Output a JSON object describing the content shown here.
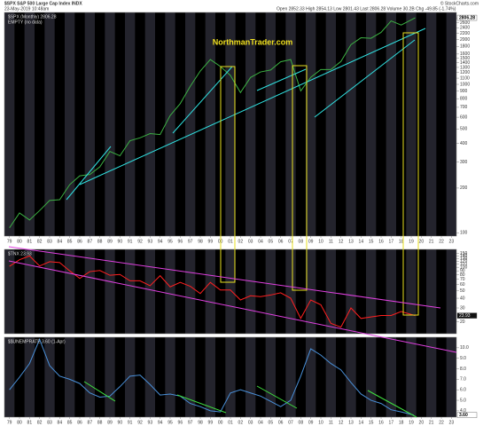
{
  "header": {
    "symbol": "$SPX S&P 500 Large Cap Index INDX",
    "date": "23-May-2019 10:48am",
    "quote": "Open 2852.33  High 2854.13  Low 2801.43  Last 2806.28  Volume 30.2B  Chg -49.85 (-1.74%)",
    "credit": "© StockCharts.com"
  },
  "chart_data": [
    {
      "type": "line",
      "log_scale": true,
      "annotation": "NorthmanTrader.com",
      "note": "EMPTY (no data)",
      "last_label": "2806.28",
      "xlim": [
        1978.5,
        2023.5
      ],
      "x": [
        1979,
        1980,
        1981,
        1982,
        1983,
        1984,
        1985,
        1986,
        1987,
        1988,
        1989,
        1990,
        1991,
        1992,
        1993,
        1994,
        1995,
        1996,
        1997,
        1998,
        1999,
        2000,
        2001,
        2002,
        2003,
        2004,
        2005,
        2006,
        2007,
        2008,
        2009,
        2010,
        2011,
        2012,
        2013,
        2014,
        2015,
        2016,
        2017,
        2018,
        2019.4
      ],
      "series": [
        {
          "name": "$SPX (Monthly) 2806.28",
          "color": "#3cb043",
          "values": [
            108,
            136,
            122,
            141,
            165,
            167,
            211,
            242,
            247,
            278,
            353,
            330,
            417,
            436,
            466,
            459,
            616,
            741,
            970,
            1229,
            1469,
            1320,
            1148,
            880,
            1112,
            1212,
            1248,
            1418,
            1468,
            903,
            1115,
            1258,
            1258,
            1426,
            1848,
            2059,
            2044,
            2239,
            2674,
            2507,
            2806
          ]
        }
      ],
      "ylim": [
        95,
        3050
      ],
      "yticks": [
        100,
        200,
        300,
        400,
        500,
        600,
        700,
        800,
        900,
        1000,
        1100,
        1200,
        1300,
        1400,
        1500,
        1600,
        1800,
        2000,
        2200,
        2400,
        2600,
        2800
      ],
      "xticks": [
        {
          "value": 1979,
          "label": "79"
        },
        {
          "value": 1980,
          "label": "80"
        },
        {
          "value": 1981,
          "label": "81"
        },
        {
          "value": 1982,
          "label": "82"
        },
        {
          "value": 1983,
          "label": "83"
        },
        {
          "value": 1984,
          "label": "84"
        },
        {
          "value": 1985,
          "label": "85"
        },
        {
          "value": 1986,
          "label": "86"
        },
        {
          "value": 1987,
          "label": "87"
        },
        {
          "value": 1988,
          "label": "88"
        },
        {
          "value": 1989,
          "label": "89"
        },
        {
          "value": 1990,
          "label": "90"
        },
        {
          "value": 1991,
          "label": "91"
        },
        {
          "value": 1992,
          "label": "92"
        },
        {
          "value": 1993,
          "label": "93"
        },
        {
          "value": 1994,
          "label": "94"
        },
        {
          "value": 1995,
          "label": "95"
        },
        {
          "value": 1996,
          "label": "96"
        },
        {
          "value": 1997,
          "label": "97"
        },
        {
          "value": 1998,
          "label": "98"
        },
        {
          "value": 1999,
          "label": "99"
        },
        {
          "value": 2000,
          "label": "00"
        },
        {
          "value": 2001,
          "label": "01"
        },
        {
          "value": 2002,
          "label": "02"
        },
        {
          "value": 2003,
          "label": "03"
        },
        {
          "value": 2004,
          "label": "04"
        },
        {
          "value": 2005,
          "label": "05"
        },
        {
          "value": 2006,
          "label": "06"
        },
        {
          "value": 2007,
          "label": "07"
        },
        {
          "value": 2008,
          "label": "08"
        },
        {
          "value": 2009,
          "label": "09"
        },
        {
          "value": 2010,
          "label": "10"
        },
        {
          "value": 2011,
          "label": "11"
        },
        {
          "value": 2012,
          "label": "12"
        },
        {
          "value": 2013,
          "label": "13"
        },
        {
          "value": 2014,
          "label": "14"
        },
        {
          "value": 2015,
          "label": "15"
        },
        {
          "value": 2016,
          "label": "16"
        },
        {
          "value": 2017,
          "label": "17"
        },
        {
          "value": 2018,
          "label": "18"
        },
        {
          "value": 2019,
          "label": "19"
        },
        {
          "value": 2020,
          "label": "20"
        },
        {
          "value": 2021,
          "label": "21"
        },
        {
          "value": 2022,
          "label": "22"
        },
        {
          "value": 2023,
          "label": "23"
        }
      ]
    },
    {
      "type": "line",
      "log_scale": true,
      "last_label": "23.93",
      "xlim": [
        1978.5,
        2023.5
      ],
      "x": [
        1979,
        1980,
        1981,
        1982,
        1983,
        1984,
        1985,
        1986,
        1987,
        1988,
        1989,
        1990,
        1991,
        1992,
        1993,
        1994,
        1995,
        1996,
        1997,
        1998,
        1999,
        2000,
        2001,
        2002,
        2003,
        2004,
        2005,
        2006,
        2007,
        2008,
        2009,
        2010,
        2011,
        2012,
        2013,
        2014,
        2015,
        2016,
        2017,
        2018,
        2019.4
      ],
      "series": [
        {
          "name": "$TNX 23.93",
          "color": "#ff2020",
          "values": [
            103,
            125,
            140,
            104,
            118,
            115,
            90,
            72,
            88,
            91,
            79,
            81,
            67,
            67,
            58,
            78,
            56,
            64,
            57,
            46,
            64,
            51,
            51,
            38,
            43,
            42,
            44,
            47,
            40,
            22,
            38,
            33,
            19,
            17,
            30,
            22,
            23,
            24,
            24,
            27,
            23.93
          ]
        }
      ],
      "ylim": [
        14,
        170
      ],
      "yticks": [
        20,
        30,
        40,
        50,
        60,
        70,
        80,
        90,
        100,
        110,
        120,
        130,
        140,
        150
      ]
    },
    {
      "type": "line",
      "log_scale": false,
      "last_label": "3.60",
      "xlim": [
        1978.5,
        2023.5
      ],
      "x": [
        1979,
        1980,
        1981,
        1982,
        1983,
        1984,
        1985,
        1986,
        1987,
        1988,
        1989,
        1990,
        1991,
        1992,
        1993,
        1994,
        1995,
        1996,
        1997,
        1998,
        1999,
        2000,
        2001,
        2002,
        2003,
        2004,
        2005,
        2006,
        2007,
        2008,
        2009,
        2010,
        2011,
        2012,
        2013,
        2014,
        2015,
        2016,
        2017,
        2018,
        2019.25
      ],
      "series": [
        {
          "name": "$$UNEMPRATE 3.60 (1-Apr)",
          "color": "#4a90d9",
          "values": [
            6.0,
            7.2,
            8.5,
            10.8,
            8.3,
            7.3,
            7.0,
            6.6,
            5.7,
            5.3,
            5.4,
            6.3,
            7.3,
            7.4,
            6.5,
            5.5,
            5.6,
            5.4,
            4.7,
            4.4,
            4.0,
            3.9,
            5.7,
            6.0,
            5.7,
            5.4,
            4.9,
            4.4,
            5.0,
            7.3,
            9.9,
            9.3,
            8.5,
            7.9,
            6.7,
            5.6,
            5.0,
            4.7,
            4.1,
            3.9,
            3.6
          ]
        }
      ],
      "ylim": [
        3.4,
        11
      ],
      "yticks": [
        {
          "value": 4,
          "label": "4.0"
        },
        {
          "value": 5,
          "label": "5.0"
        },
        {
          "value": 6,
          "label": "6.0"
        },
        {
          "value": 7,
          "label": "7.0"
        },
        {
          "value": 8,
          "label": "8.0"
        },
        {
          "value": 9,
          "label": "9.0"
        },
        {
          "value": 10,
          "label": "10.0"
        }
      ],
      "xticks": [
        {
          "value": 1979,
          "label": "79"
        },
        {
          "value": 1980,
          "label": "80"
        },
        {
          "value": 1981,
          "label": "81"
        },
        {
          "value": 1982,
          "label": "82"
        },
        {
          "value": 1983,
          "label": "83"
        },
        {
          "value": 1984,
          "label": "84"
        },
        {
          "value": 1985,
          "label": "85"
        },
        {
          "value": 1986,
          "label": "86"
        },
        {
          "value": 1987,
          "label": "87"
        },
        {
          "value": 1988,
          "label": "88"
        },
        {
          "value": 1989,
          "label": "89"
        },
        {
          "value": 1990,
          "label": "90"
        },
        {
          "value": 1991,
          "label": "91"
        },
        {
          "value": 1992,
          "label": "92"
        },
        {
          "value": 1993,
          "label": "93"
        },
        {
          "value": 1994,
          "label": "94"
        },
        {
          "value": 1995,
          "label": "95"
        },
        {
          "value": 1996,
          "label": "96"
        },
        {
          "value": 1997,
          "label": "97"
        },
        {
          "value": 1998,
          "label": "98"
        },
        {
          "value": 1999,
          "label": "99"
        },
        {
          "value": 2000,
          "label": "00"
        },
        {
          "value": 2001,
          "label": "01"
        },
        {
          "value": 2002,
          "label": "02"
        },
        {
          "value": 2003,
          "label": "03"
        },
        {
          "value": 2004,
          "label": "04"
        },
        {
          "value": 2005,
          "label": "05"
        },
        {
          "value": 2006,
          "label": "06"
        },
        {
          "value": 2007,
          "label": "07"
        },
        {
          "value": 2008,
          "label": "08"
        },
        {
          "value": 2009,
          "label": "09"
        },
        {
          "value": 2010,
          "label": "10"
        },
        {
          "value": 2011,
          "label": "11"
        },
        {
          "value": 2012,
          "label": "12"
        },
        {
          "value": 2013,
          "label": "13"
        },
        {
          "value": 2014,
          "label": "14"
        },
        {
          "value": 2015,
          "label": "15"
        },
        {
          "value": 2016,
          "label": "16"
        },
        {
          "value": 2017,
          "label": "17"
        },
        {
          "value": 2018,
          "label": "18"
        },
        {
          "value": 2019,
          "label": "19"
        },
        {
          "value": 2020,
          "label": "20"
        },
        {
          "value": 2021,
          "label": "21"
        },
        {
          "value": 2022,
          "label": "22"
        },
        {
          "value": 2023,
          "label": "23"
        }
      ]
    }
  ]
}
